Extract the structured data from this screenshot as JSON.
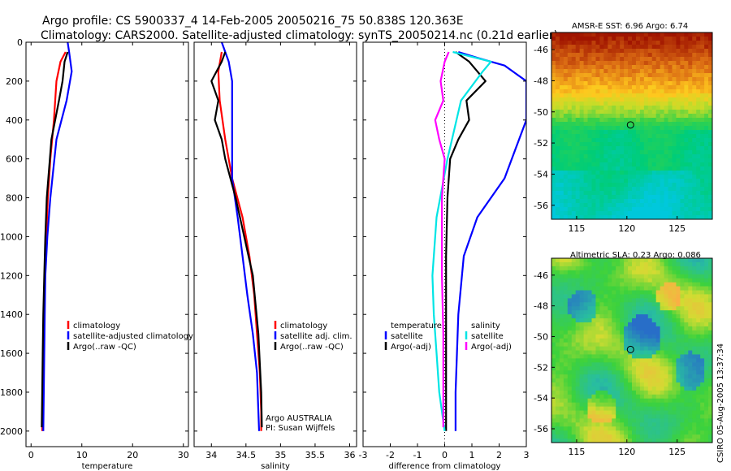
{
  "header": {
    "line1": "Argo profile: CS 5900337_4 14-Feb-2005 20050216_75 50.838S 120.363E",
    "line2": "Climatology: CARS2000. Satellite-adjusted climatology: synTS_20050214.nc (0.21d earlier)"
  },
  "credit": "CSIRO 05-Aug-2005 13:37:34",
  "colors": {
    "climatology": "#ff0000",
    "satellite": "#0000ff",
    "argo": "#000000",
    "salinity_sat": "#00e5e5",
    "salinity_argo": "#ff00ff"
  },
  "chart_data": [
    {
      "type": "line",
      "xlabel": "temperature",
      "ylabel": "",
      "xlim": [
        -1,
        31
      ],
      "ylim": [
        2080,
        0
      ],
      "xticks": [
        0,
        10,
        20,
        30
      ],
      "yticks": [
        0,
        200,
        400,
        600,
        800,
        1000,
        1200,
        1400,
        1600,
        1800,
        2000
      ],
      "legend": [
        "climatology",
        "satellite-adjusted climatology",
        "Argo(..raw -QC)"
      ],
      "series": [
        {
          "name": "climatology",
          "color": "#ff0000",
          "x": [
            6.8,
            5.8,
            5.0,
            4.5,
            3.8,
            3.3,
            3.0,
            2.7,
            2.5,
            2.4,
            2.3,
            2.2
          ],
          "y": [
            50,
            100,
            200,
            400,
            600,
            800,
            1000,
            1200,
            1400,
            1600,
            1800,
            2000
          ]
        },
        {
          "name": "satellite-adjusted climatology",
          "color": "#0000ff",
          "x": [
            7.2,
            7.5,
            8.0,
            7.0,
            5.0,
            3.8,
            3.2,
            2.8,
            2.7,
            2.6,
            2.5,
            2.4
          ],
          "y": [
            0,
            50,
            150,
            300,
            500,
            800,
            1000,
            1200,
            1400,
            1600,
            1800,
            2000
          ]
        },
        {
          "name": "Argo(..raw -QC)",
          "color": "#000000",
          "x": [
            7.2,
            6.6,
            6.2,
            5.5,
            4.0,
            3.1,
            2.8,
            2.6,
            2.4,
            2.3,
            2.2,
            2.1
          ],
          "y": [
            50,
            100,
            200,
            300,
            500,
            800,
            1000,
            1200,
            1400,
            1600,
            1800,
            1980
          ]
        }
      ]
    },
    {
      "type": "line",
      "xlabel": "salinity",
      "ylabel": "",
      "xlim": [
        33.75,
        36.1
      ],
      "ylim": [
        2080,
        0
      ],
      "xticks": [
        34,
        34.5,
        35,
        35.5,
        36
      ],
      "legend": [
        "climatology",
        "satellite adj. clim.",
        "Argo(..raw -QC)"
      ],
      "annotation": [
        "Argo AUSTRALIA",
        "PI: Susan Wijffels"
      ],
      "series": [
        {
          "name": "climatology",
          "color": "#ff0000",
          "x": [
            34.15,
            34.1,
            34.12,
            34.2,
            34.3,
            34.45,
            34.55,
            34.62,
            34.66,
            34.7,
            34.72,
            34.72
          ],
          "y": [
            50,
            150,
            300,
            500,
            700,
            900,
            1100,
            1300,
            1500,
            1700,
            1900,
            2000
          ]
        },
        {
          "name": "satellite adj. clim.",
          "color": "#0000ff",
          "x": [
            34.15,
            34.25,
            34.3,
            34.3,
            34.3,
            34.38,
            34.45,
            34.52,
            34.6,
            34.66,
            34.68,
            34.69
          ],
          "y": [
            0,
            100,
            200,
            300,
            700,
            900,
            1100,
            1300,
            1500,
            1700,
            1900,
            2000
          ]
        },
        {
          "name": "Argo(..raw -QC)",
          "color": "#000000",
          "x": [
            34.2,
            34.15,
            34.0,
            34.1,
            34.05,
            34.15,
            34.2,
            34.35,
            34.6,
            34.68,
            34.72,
            34.73
          ],
          "y": [
            50,
            100,
            200,
            300,
            400,
            500,
            600,
            800,
            1200,
            1500,
            1800,
            1980
          ]
        }
      ]
    },
    {
      "type": "line",
      "xlabel": "difference from climatology",
      "ylabel": "",
      "xlim": [
        -3,
        3
      ],
      "ylim": [
        2080,
        0
      ],
      "xticks": [
        -3,
        -2,
        -1,
        0,
        1,
        2,
        3
      ],
      "legend_temperature": [
        "temperature",
        "satellite",
        "Argo(-adj)"
      ],
      "legend_salinity": [
        "salinity",
        "satellite",
        "Argo(-adj)"
      ],
      "series": [
        {
          "name": "satellite",
          "color": "#0000ff",
          "x": [
            0.5,
            1.2,
            2.2,
            3.0,
            3.0,
            2.2,
            1.2,
            0.7,
            0.5,
            0.45,
            0.4,
            0.4
          ],
          "y": [
            50,
            80,
            120,
            200,
            400,
            700,
            900,
            1100,
            1400,
            1600,
            1800,
            2000
          ]
        },
        {
          "name": "Argo(-adj)",
          "color": "#000000",
          "x": [
            0.4,
            0.9,
            1.5,
            0.8,
            0.9,
            0.5,
            0.2,
            0.1,
            0.05,
            0.05,
            0.05,
            0.05
          ],
          "y": [
            50,
            100,
            200,
            300,
            400,
            500,
            600,
            800,
            1100,
            1400,
            1700,
            2000
          ]
        },
        {
          "name": "satellite",
          "color": "#00e5e5",
          "x": [
            0.3,
            1.7,
            1.4,
            0.6,
            0.1,
            -0.3,
            -0.45,
            -0.4,
            -0.3,
            -0.2,
            -0.1,
            0.0
          ],
          "y": [
            50,
            100,
            150,
            300,
            600,
            900,
            1200,
            1400,
            1600,
            1800,
            1900,
            2000
          ]
        },
        {
          "name": "Argo(-adj)",
          "color": "#ff00ff",
          "x": [
            0.15,
            0.0,
            -0.15,
            -0.05,
            -0.35,
            -0.2,
            0.0,
            -0.1,
            -0.1,
            -0.05,
            -0.05,
            -0.05
          ],
          "y": [
            50,
            100,
            200,
            300,
            400,
            500,
            600,
            800,
            1200,
            1500,
            1800,
            1980
          ]
        }
      ]
    },
    {
      "type": "heatmap",
      "title": "AMSR-E SST: 6.96 Argo: 6.74",
      "xticks": [
        115,
        120,
        125
      ],
      "yticks": [
        -46,
        -48,
        -50,
        -52,
        -54,
        -56
      ],
      "xlim": [
        112.5,
        128.5
      ],
      "ylim": [
        -56.9,
        -44.9
      ],
      "marker": {
        "x": 120.36,
        "y": -50.84
      }
    },
    {
      "type": "heatmap",
      "title": "Altimetric SLA: 0.23 Argo: 0.086",
      "xticks": [
        115,
        120,
        125
      ],
      "yticks": [
        -46,
        -48,
        -50,
        -52,
        -54,
        -56
      ],
      "xlim": [
        112.5,
        128.5
      ],
      "ylim": [
        -56.9,
        -44.9
      ],
      "marker": {
        "x": 120.36,
        "y": -50.84
      }
    }
  ]
}
